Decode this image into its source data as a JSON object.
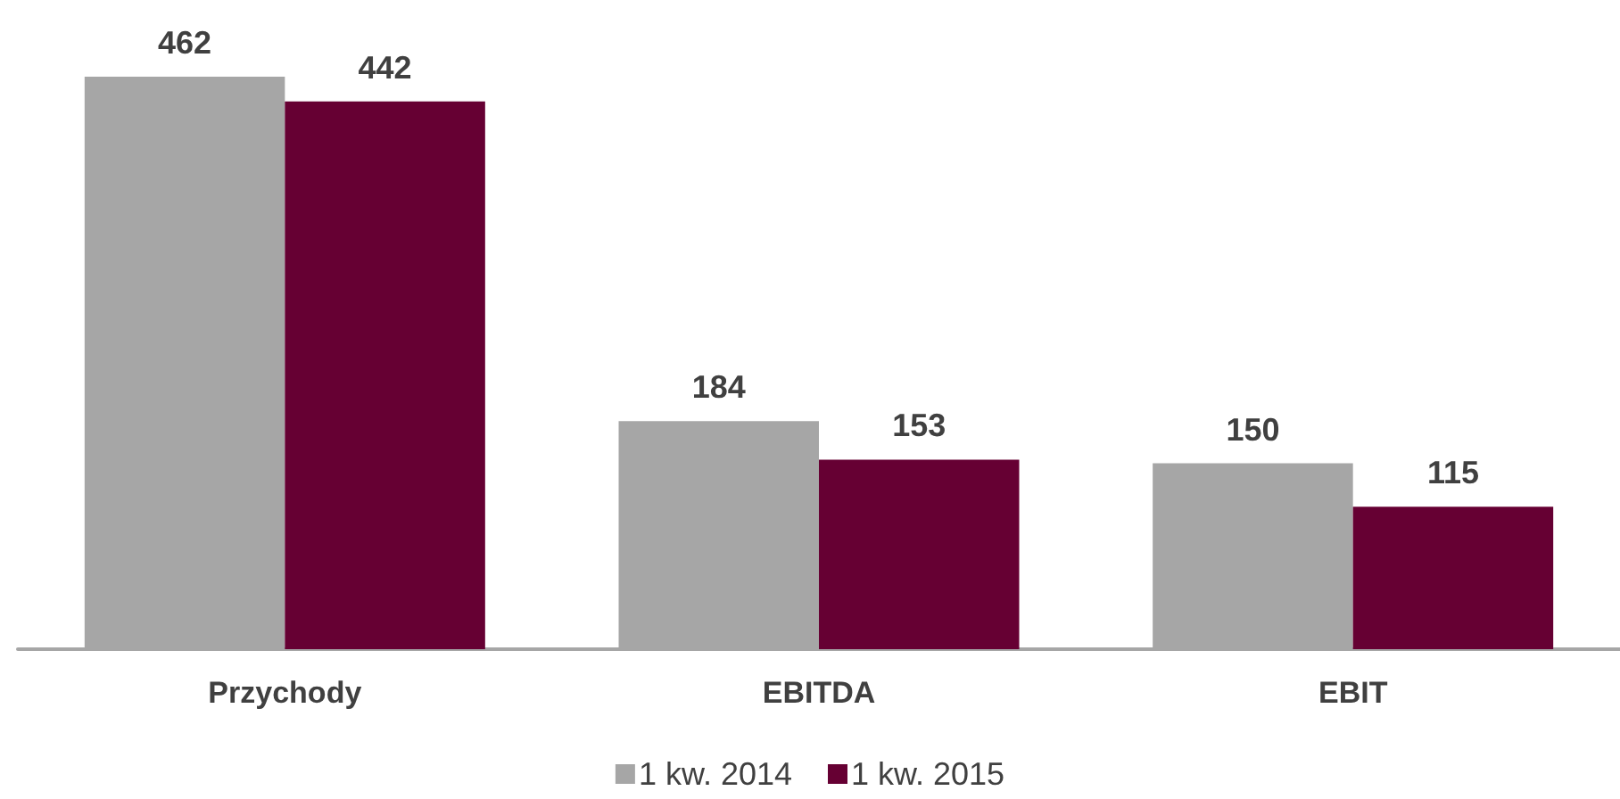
{
  "chart_data": {
    "type": "bar",
    "categories": [
      "Przychody",
      "EBITDA",
      "EBIT"
    ],
    "series": [
      {
        "name": "1 kw. 2014",
        "color": "#a6a6a6",
        "values": [
          462,
          184,
          150
        ]
      },
      {
        "name": "1 kw. 2015",
        "color": "#660033",
        "values": [
          442,
          153,
          115
        ]
      }
    ],
    "data_labels": true,
    "legend": "bottom",
    "grid": false,
    "tick_labels": "x"
  }
}
